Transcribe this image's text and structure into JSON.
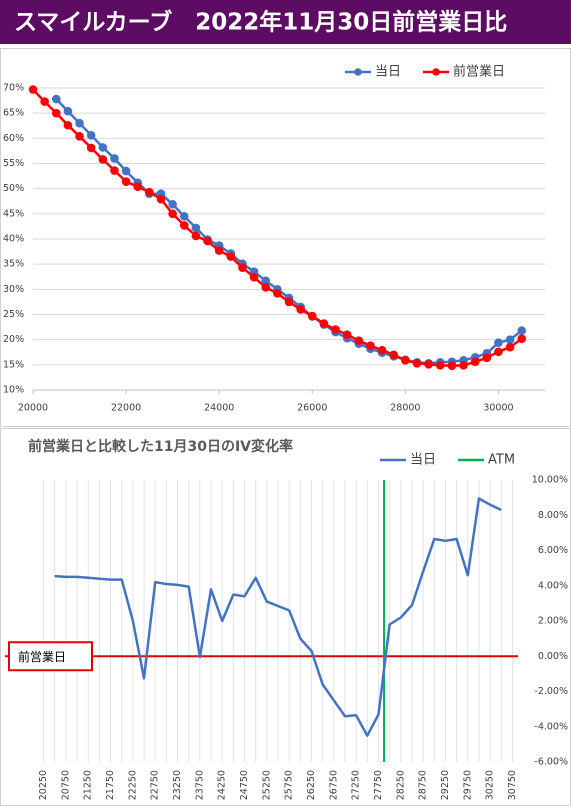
{
  "header": {
    "title": "スマイルカーブ　2022年11月30日前営業日比"
  },
  "chart_data": [
    {
      "type": "line",
      "markers": true,
      "grid": "horizontal",
      "legend": "top-right",
      "x": [
        20000,
        20250,
        20500,
        20750,
        21000,
        21250,
        21500,
        21750,
        22000,
        22250,
        22500,
        22750,
        23000,
        23250,
        23500,
        23750,
        24000,
        24250,
        24500,
        24750,
        25000,
        25250,
        25500,
        25750,
        26000,
        26250,
        26500,
        26750,
        27000,
        27250,
        27500,
        27750,
        28000,
        28250,
        28500,
        28750,
        29000,
        29250,
        29500,
        29750,
        30000,
        30250,
        30500
      ],
      "xlim": [
        20000,
        31000
      ],
      "xticks": [
        20000,
        22000,
        24000,
        26000,
        28000,
        30000
      ],
      "ylim": [
        10,
        70
      ],
      "yticks": [
        {
          "value": 10,
          "label": "10%"
        },
        {
          "value": 15,
          "label": "15%"
        },
        {
          "value": 20,
          "label": "20%"
        },
        {
          "value": 25,
          "label": "25%"
        },
        {
          "value": 30,
          "label": "30%"
        },
        {
          "value": 35,
          "label": "35%"
        },
        {
          "value": 40,
          "label": "40%"
        },
        {
          "value": 45,
          "label": "45%"
        },
        {
          "value": 50,
          "label": "50%"
        },
        {
          "value": 55,
          "label": "55%"
        },
        {
          "value": 60,
          "label": "60%"
        },
        {
          "value": 65,
          "label": "65%"
        },
        {
          "value": 70,
          "label": "70%"
        }
      ],
      "series": [
        {
          "name": "当日",
          "color": "#4472c4",
          "values": [
            null,
            null,
            67.8,
            65.4,
            63.0,
            60.6,
            58.2,
            56.0,
            53.5,
            51.2,
            49.0,
            49.0,
            46.9,
            44.5,
            42.2,
            39.9,
            38.7,
            37.1,
            35.1,
            33.5,
            31.7,
            30.0,
            28.3,
            26.5,
            24.6,
            23.0,
            21.5,
            20.3,
            19.2,
            18.2,
            17.4,
            16.7,
            16.0,
            15.5,
            15.3,
            15.5,
            15.6,
            15.9,
            16.5,
            17.3,
            19.4,
            20.0,
            21.8
          ]
        },
        {
          "name": "前営業日",
          "color": "#ff0000",
          "values": [
            69.7,
            67.3,
            65.0,
            62.6,
            60.4,
            58.1,
            55.8,
            53.6,
            51.4,
            50.4,
            49.3,
            47.9,
            45.0,
            42.7,
            40.6,
            39.6,
            37.7,
            36.5,
            34.3,
            32.4,
            30.4,
            29.2,
            27.5,
            26.0,
            24.7,
            23.2,
            22.0,
            21.0,
            19.8,
            18.8,
            17.9,
            17.0,
            15.9,
            15.3,
            15.1,
            14.9,
            14.8,
            14.9,
            15.6,
            16.4,
            17.6,
            18.5,
            20.2
          ]
        }
      ]
    },
    {
      "type": "line",
      "markers": false,
      "grid": "vertical",
      "legend": "top-right",
      "title": "前営業日と比較した11月30日のIV変化率",
      "categories": [
        "20250",
        null,
        "20750",
        null,
        "21250",
        null,
        "21750",
        null,
        "22250",
        null,
        "22750",
        null,
        "23250",
        null,
        "23750",
        null,
        "24250",
        null,
        "24750",
        null,
        "25250",
        null,
        "25750",
        null,
        "26250",
        null,
        "26750",
        null,
        "27250",
        null,
        "27750",
        null,
        "28250",
        null,
        "28750",
        null,
        "29250",
        null,
        "29750",
        null,
        "30250",
        null,
        "30750"
      ],
      "ylim": [
        -6,
        10
      ],
      "yticks": [
        {
          "value": -6,
          "label": "-6.00%"
        },
        {
          "value": -4,
          "label": "-4.00%"
        },
        {
          "value": -2,
          "label": "-2.00%"
        },
        {
          "value": 0,
          "label": "0.00%"
        },
        {
          "value": 2,
          "label": "2.00%"
        },
        {
          "value": 4,
          "label": "4.00%"
        },
        {
          "value": 6,
          "label": "6.00%"
        },
        {
          "value": 8,
          "label": "8.00%"
        },
        {
          "value": 10,
          "label": "10.00%"
        }
      ],
      "series": [
        {
          "name": "当日",
          "color": "#4472c4",
          "values": [
            null,
            4.55,
            4.5,
            4.5,
            4.45,
            4.4,
            4.35,
            4.35,
            2.0,
            -1.25,
            4.2,
            4.1,
            4.05,
            3.95,
            -0.05,
            3.8,
            2.0,
            3.5,
            3.4,
            4.45,
            3.1,
            2.85,
            2.6,
            1.0,
            0.3,
            -1.6,
            -2.5,
            -3.4,
            -3.35,
            -4.5,
            -3.3,
            1.8,
            2.2,
            2.9,
            4.8,
            6.65,
            6.55,
            6.65,
            4.6,
            8.95,
            8.6,
            8.3,
            null
          ]
        }
      ],
      "atm": {
        "name": "ATM",
        "color": "#00b050",
        "value": 27875
      },
      "baseline": {
        "label": "前営業日",
        "value": 0,
        "color": "#e00000"
      }
    }
  ]
}
